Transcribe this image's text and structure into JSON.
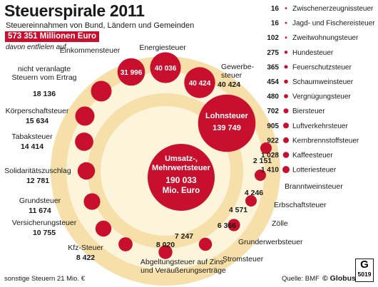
{
  "header": {
    "title": "Steuerspirale 2011",
    "subtitle": "Steuereinnahmen von Bund, Ländern und Gemeinden",
    "total": "573 351 Millionen Euro",
    "note": "davon entfielen auf"
  },
  "footer": {
    "other_taxes": "sonstige Steuern 21 Mio. €",
    "source": "Quelle: BMF",
    "brand": "© Globus",
    "logo_letter": "G",
    "logo_number": "5019"
  },
  "colors": {
    "accent": "#c8102e",
    "ring": "#f6dfa8",
    "ring_light": "#fdf4dc",
    "text": "#1a1a1a"
  },
  "chart_data": {
    "type": "bubble spiral",
    "unit": "Mio. Euro",
    "spiral_labels": [
      {
        "name": "Umsatz-, Mehrwertsteuer",
        "value": "190 033",
        "unit": "Mio. Euro"
      },
      {
        "name": "Lohnsteuer",
        "value": "139 749"
      },
      {
        "name": "Gewerbesteuer",
        "value": "40 424"
      },
      {
        "name": "Energiesteuer",
        "value": "40 036"
      },
      {
        "name": "Einkommensteuer",
        "value": "31 996"
      },
      {
        "name": "nicht veranlagte Steuern vom Ertrag",
        "value": "18 136"
      },
      {
        "name": "Körperschaftsteuer",
        "value": "15 634"
      },
      {
        "name": "Tabaksteuer",
        "value": "14 414"
      },
      {
        "name": "Solidaritätszuschlag",
        "value": "12 781"
      },
      {
        "name": "Grundsteuer",
        "value": "11 674"
      },
      {
        "name": "Versicherungsteuer",
        "value": "10 755"
      },
      {
        "name": "Kfz-Steuer",
        "value": "8 422"
      },
      {
        "name": "Abgeltungsteuer auf Zins- und Veräußerungserträge",
        "value": "8 020"
      },
      {
        "name": "Stromsteuer",
        "value": "7 247"
      },
      {
        "name": "Grunderwerbsteuer",
        "value": "6 366"
      },
      {
        "name": "Zölle",
        "value": "4 571"
      },
      {
        "name": "Erbschaftsteuer",
        "value": "4 246"
      },
      {
        "name": "Branntweinsteuer",
        "value": "2 151"
      }
    ],
    "list_items": [
      {
        "name": "Zwischenerzeugnissteuer",
        "value": "16"
      },
      {
        "name": "Jagd- und Fischereisteuer",
        "value": "16"
      },
      {
        "name": "Zweitwohnungsteuer",
        "value": "102"
      },
      {
        "name": "Hundesteuer",
        "value": "275"
      },
      {
        "name": "Feuerschutzsteuer",
        "value": "365"
      },
      {
        "name": "Schaumweinsteuer",
        "value": "454"
      },
      {
        "name": "Vergnügungsteuer",
        "value": "480"
      },
      {
        "name": "Biersteuer",
        "value": "702"
      },
      {
        "name": "Luftverkehrsteuer",
        "value": "905"
      },
      {
        "name": "Kernbrennstoffsteuer",
        "value": "922"
      },
      {
        "name": "Kaffeesteuer",
        "value": "1 028"
      },
      {
        "name": "Lotteriesteuer",
        "value": "1 410"
      }
    ]
  }
}
